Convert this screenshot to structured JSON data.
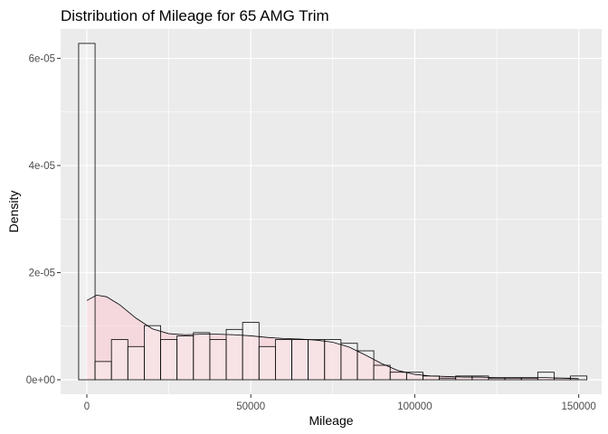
{
  "chart_data": {
    "type": "histogram",
    "title": "Distribution of Mileage for 65 AMG Trim",
    "xlabel": "Mileage",
    "ylabel": "Density",
    "xlim": [
      -8000,
      157000
    ],
    "ylim": [
      -2.7e-06,
      6.55e-05
    ],
    "x_ticks": [
      0,
      50000,
      100000,
      150000
    ],
    "x_tick_labels": [
      "0",
      "50000",
      "100000",
      "150000"
    ],
    "y_ticks": [
      0,
      2e-05,
      4e-05,
      6e-05
    ],
    "y_tick_labels": [
      "0e+00",
      "2e-05",
      "4e-05",
      "6e-05"
    ],
    "grid": true,
    "legend": "none",
    "colors": {
      "panel_background": "#ebebeb",
      "grid_line": "#ffffff",
      "bar_fill": "#ffffff",
      "bar_outline": "#000000",
      "density_fill": "#ffc0cb",
      "density_line": "#000000"
    },
    "histogram": {
      "bin_width": 5000,
      "bin_starts": [
        -2500,
        2500,
        7500,
        12500,
        17500,
        22500,
        27500,
        32500,
        37500,
        42500,
        47500,
        52500,
        57500,
        62500,
        67500,
        72500,
        77500,
        82500,
        87500,
        92500,
        97500,
        102500,
        107500,
        112500,
        117500,
        122500,
        127500,
        132500,
        137500,
        142500,
        147500
      ],
      "densities": [
        6.28e-05,
        3.4e-06,
        7.5e-06,
        6.2e-06,
        1.01e-05,
        7.5e-06,
        8.2e-06,
        8.8e-06,
        7.5e-06,
        9.4e-06,
        1.07e-05,
        6.2e-06,
        7.5e-06,
        7.5e-06,
        7.5e-06,
        7.5e-06,
        6.8e-06,
        5.4e-06,
        2.7e-06,
        1.4e-06,
        1.4e-06,
        7e-07,
        3e-07,
        7e-07,
        7e-07,
        3e-07,
        3e-07,
        3e-07,
        1.4e-06,
        3e-07,
        7e-07
      ]
    },
    "density_curve": {
      "x": [
        0,
        3000,
        6000,
        10000,
        15000,
        20000,
        25000,
        30000,
        35000,
        40000,
        45000,
        50000,
        55000,
        60000,
        65000,
        70000,
        75000,
        80000,
        85000,
        90000,
        95000,
        100000,
        105000,
        110000,
        115000,
        120000,
        125000,
        130000,
        135000,
        140000,
        145000,
        150000
      ],
      "y": [
        1.48e-05,
        1.58e-05,
        1.55e-05,
        1.4e-05,
        1.15e-05,
        9.5e-06,
        8.6e-06,
        8.4e-06,
        8.5e-06,
        8.5e-06,
        8.4e-06,
        8.2e-06,
        7.9e-06,
        7.7e-06,
        7.6e-06,
        7.4e-06,
        7e-06,
        6.1e-06,
        4.6e-06,
        3e-06,
        1.7e-06,
        1e-06,
        7e-07,
        6e-07,
        5e-07,
        5e-07,
        4e-07,
        4e-07,
        4e-07,
        4e-07,
        3e-07,
        2e-07
      ]
    }
  }
}
